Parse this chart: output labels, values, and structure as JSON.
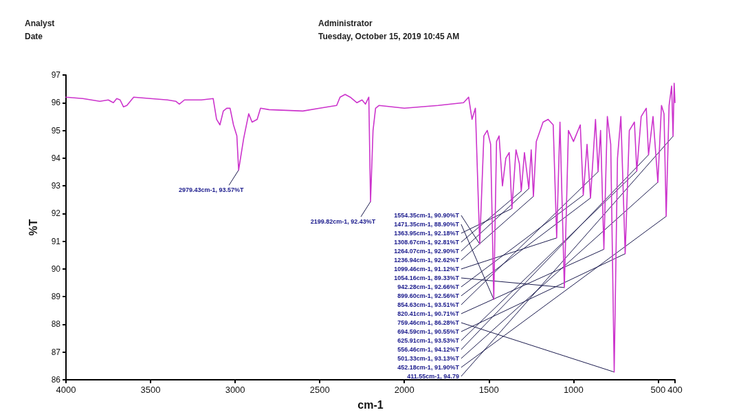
{
  "chart_data": {
    "type": "line",
    "xlabel": "cm-1",
    "ylabel": "%T",
    "xlim": [
      4000,
      400
    ],
    "xticks": [
      4000,
      3500,
      3000,
      2500,
      2000,
      1500,
      1000,
      500,
      400
    ],
    "ylim": [
      86,
      97
    ],
    "yticks": [
      86,
      87,
      88,
      89,
      90,
      91,
      92,
      93,
      94,
      95,
      96,
      97
    ],
    "grid": false,
    "marker": "none",
    "line_style": "solid",
    "annotations": [
      "Analyst",
      "Administrator",
      "Date",
      "Tuesday, October 15, 2019 10:45 AM",
      {
        "text": "2979.43cm-1, 93.57%T",
        "x": 2979.43,
        "y": 93.57
      },
      {
        "text": "2199.82cm-1, 92.43%T",
        "x": 2199.82,
        "y": 92.43
      },
      {
        "text": "1554.35cm-1, 90.90%T",
        "x": 1554.35,
        "y": 90.9
      },
      {
        "text": "1471.35cm-1, 88.90%T",
        "x": 1471.35,
        "y": 88.9
      },
      {
        "text": "1363.95cm-1, 92.18%T",
        "x": 1363.95,
        "y": 92.18
      },
      {
        "text": "1308.67cm-1, 92.81%T",
        "x": 1308.67,
        "y": 92.81
      },
      {
        "text": "1264.07cm-1, 92.90%T",
        "x": 1264.07,
        "y": 92.9
      },
      {
        "text": "1236.94cm-1, 92.62%T",
        "x": 1236.94,
        "y": 92.62
      },
      {
        "text": "1099.46cm-1, 91.12%T",
        "x": 1099.46,
        "y": 91.12
      },
      {
        "text": "1054.16cm-1, 89.33%T",
        "x": 1054.16,
        "y": 89.33
      },
      {
        "text": "942.28cm-1, 92.66%T",
        "x": 942.28,
        "y": 92.66
      },
      {
        "text": "899.60cm-1, 92.56%T",
        "x": 899.6,
        "y": 92.56
      },
      {
        "text": "854.63cm-1, 93.51%T",
        "x": 854.63,
        "y": 93.51
      },
      {
        "text": "820.41cm-1, 90.71%T",
        "x": 820.41,
        "y": 90.71
      },
      {
        "text": "759.46cm-1, 86.28%T",
        "x": 759.46,
        "y": 86.28
      },
      {
        "text": "694.59cm-1, 90.55%T",
        "x": 694.59,
        "y": 90.55
      },
      {
        "text": "625.91cm-1, 93.53%T",
        "x": 625.91,
        "y": 93.53
      },
      {
        "text": "556.46cm-1, 94.12%T",
        "x": 556.46,
        "y": 94.12
      },
      {
        "text": "501.33cm-1, 93.13%T",
        "x": 501.33,
        "y": 93.13
      },
      {
        "text": "452.18cm-1, 91.90%T",
        "x": 452.18,
        "y": 91.9
      },
      {
        "text": "411.55cm-1, 94.79",
        "x": 411.55,
        "y": 94.79
      }
    ],
    "series": [
      {
        "color": "#cc33cc",
        "x": [
          4000,
          3900,
          3800,
          3750,
          3720,
          3700,
          3680,
          3660,
          3640,
          3600,
          3500,
          3400,
          3350,
          3330,
          3300,
          3200,
          3130,
          3110,
          3090,
          3070,
          3050,
          3030,
          3010,
          2990,
          2979.43,
          2950,
          2920,
          2900,
          2870,
          2850,
          2800,
          2600,
          2500,
          2400,
          2380,
          2350,
          2320,
          2280,
          2250,
          2230,
          2210,
          2199.82,
          2185,
          2170,
          2150,
          2000,
          1800,
          1650,
          1620,
          1600,
          1580,
          1554.35,
          1530,
          1510,
          1490,
          1471.35,
          1455,
          1440,
          1420,
          1400,
          1380,
          1363.95,
          1340,
          1320,
          1308.67,
          1290,
          1264.07,
          1250,
          1236.94,
          1220,
          1180,
          1150,
          1120,
          1099.46,
          1080,
          1054.16,
          1030,
          1000,
          960,
          942.28,
          920,
          899.6,
          870,
          854.63,
          840,
          820.41,
          800,
          780,
          759.46,
          740,
          720,
          694.59,
          670,
          640,
          625.91,
          600,
          570,
          556.46,
          530,
          501.33,
          480,
          465,
          452.18,
          435,
          420,
          411.55,
          405,
          400
        ],
        "values": [
          96.2,
          96.15,
          96.05,
          96.1,
          96.0,
          96.15,
          96.1,
          95.85,
          95.9,
          96.2,
          96.15,
          96.1,
          96.05,
          95.95,
          96.1,
          96.1,
          96.15,
          95.4,
          95.2,
          95.7,
          95.8,
          95.8,
          95.2,
          94.8,
          93.57,
          94.7,
          95.6,
          95.3,
          95.4,
          95.8,
          95.75,
          95.7,
          95.8,
          95.9,
          96.2,
          96.3,
          96.2,
          96.0,
          96.1,
          95.95,
          96.2,
          92.43,
          95.0,
          95.8,
          95.9,
          95.8,
          95.9,
          96.0,
          96.2,
          95.4,
          95.8,
          90.9,
          94.8,
          95.0,
          94.5,
          88.9,
          94.6,
          94.8,
          93.0,
          94.0,
          94.2,
          92.18,
          94.3,
          93.8,
          92.81,
          94.2,
          92.9,
          94.3,
          92.62,
          94.6,
          95.3,
          95.4,
          95.2,
          91.12,
          95.3,
          89.33,
          95.0,
          94.6,
          95.2,
          92.66,
          94.5,
          92.56,
          95.4,
          93.51,
          95.0,
          90.71,
          95.5,
          94.5,
          86.28,
          94.0,
          95.5,
          90.55,
          95.0,
          95.3,
          93.53,
          95.5,
          95.8,
          94.12,
          95.5,
          93.13,
          95.9,
          95.6,
          91.9,
          95.9,
          96.6,
          94.79,
          96.7,
          96.0
        ]
      }
    ]
  }
}
